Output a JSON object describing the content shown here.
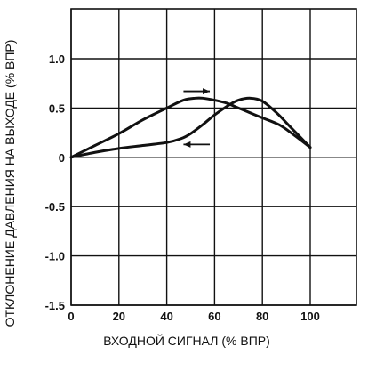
{
  "chart_data": {
    "type": "line",
    "title": "",
    "xlabel": "ВХОДНОЙ СИГНАЛ (% ВПР)",
    "ylabel": "ОТКЛОНЕНИЕ ДАВЛЕНИЯ НА ВЫХОДЕ (% ВПР)",
    "xlim": [
      0,
      100
    ],
    "ylim": [
      -1.5,
      1.5
    ],
    "x_ticks": [
      0,
      20,
      40,
      60,
      80,
      100
    ],
    "x_tick_labels": [
      "0",
      "20",
      "40",
      "60",
      "80",
      "100"
    ],
    "y_ticks": [
      1.0,
      0.5,
      0,
      -0.5,
      -1.0,
      -1.5
    ],
    "y_tick_labels": [
      "1.0",
      "0.5",
      "0",
      "-0.5",
      "-1.0",
      "-1.5"
    ],
    "grid": true,
    "legend": "none",
    "series": [
      {
        "direction": "increasing",
        "x": [
          0,
          10,
          20,
          30,
          40,
          46,
          50,
          55,
          60,
          66,
          70,
          75,
          80,
          86,
          92,
          100
        ],
        "y": [
          0.0,
          0.05,
          0.09,
          0.12,
          0.15,
          0.19,
          0.24,
          0.33,
          0.43,
          0.53,
          0.58,
          0.6,
          0.57,
          0.45,
          0.3,
          0.1
        ]
      },
      {
        "direction": "decreasing",
        "x": [
          100,
          93,
          87,
          80,
          75,
          70,
          65,
          60,
          55,
          52,
          47,
          40,
          30,
          20,
          10,
          0
        ],
        "y": [
          0.1,
          0.23,
          0.33,
          0.4,
          0.45,
          0.5,
          0.55,
          0.58,
          0.6,
          0.6,
          0.58,
          0.5,
          0.38,
          0.24,
          0.12,
          0.0
        ]
      }
    ],
    "annotations": [
      {
        "type": "arrow",
        "direction": "right",
        "x": [
          47,
          58
        ],
        "y": 0.67
      },
      {
        "type": "arrow",
        "direction": "left",
        "x": [
          58,
          47
        ],
        "y": 0.13
      }
    ],
    "colors": {
      "line": "#111111",
      "grid": "#111111",
      "background": "#ffffff"
    }
  }
}
